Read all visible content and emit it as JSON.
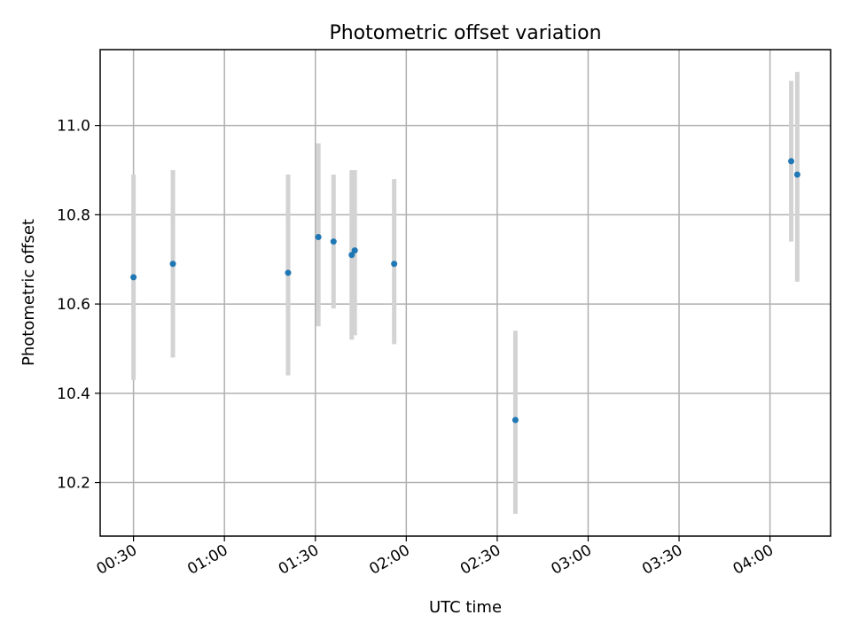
{
  "chart_data": {
    "type": "scatter",
    "title": "Photometric offset variation",
    "xlabel": "UTC time",
    "ylabel": "Photometric offset",
    "x_ticks": [
      "00:30",
      "01:00",
      "01:30",
      "02:00",
      "02:30",
      "03:00",
      "03:30",
      "04:00"
    ],
    "y_ticks": [
      "10.2",
      "10.4",
      "10.6",
      "10.8",
      "11.0"
    ],
    "xlim": [
      "00:19",
      "04:20"
    ],
    "ylim": [
      10.08,
      11.17
    ],
    "grid": true,
    "colors": {
      "point": "#1f77b4",
      "error_bar": "#d3d3d3",
      "grid": "#b0b0b0"
    },
    "points": [
      {
        "x": "00:30",
        "y": 10.66,
        "err_low": 10.43,
        "err_high": 10.89
      },
      {
        "x": "00:43",
        "y": 10.69,
        "err_low": 10.48,
        "err_high": 10.9
      },
      {
        "x": "01:21",
        "y": 10.67,
        "err_low": 10.44,
        "err_high": 10.89
      },
      {
        "x": "01:31",
        "y": 10.75,
        "err_low": 10.55,
        "err_high": 10.96
      },
      {
        "x": "01:36",
        "y": 10.74,
        "err_low": 10.59,
        "err_high": 10.89
      },
      {
        "x": "01:42",
        "y": 10.71,
        "err_low": 10.52,
        "err_high": 10.9
      },
      {
        "x": "01:43",
        "y": 10.72,
        "err_low": 10.53,
        "err_high": 10.9
      },
      {
        "x": "01:56",
        "y": 10.69,
        "err_low": 10.51,
        "err_high": 10.88
      },
      {
        "x": "02:36",
        "y": 10.34,
        "err_low": 10.13,
        "err_high": 10.54
      },
      {
        "x": "04:07",
        "y": 10.92,
        "err_low": 10.74,
        "err_high": 11.1
      },
      {
        "x": "04:09",
        "y": 10.89,
        "err_low": 10.65,
        "err_high": 11.12
      }
    ]
  }
}
